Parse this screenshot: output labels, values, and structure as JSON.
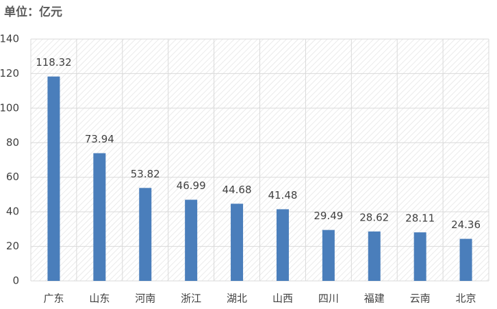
{
  "chart_data": {
    "type": "bar",
    "title": "单位：亿元",
    "categories": [
      "广东",
      "山东",
      "河南",
      "浙江",
      "湖北",
      "山西",
      "四川",
      "福建",
      "云南",
      "北京"
    ],
    "values": [
      118.32,
      73.94,
      53.82,
      46.99,
      44.68,
      41.48,
      29.49,
      28.62,
      28.11,
      24.36
    ],
    "color": "#4a7ebb",
    "ylim": [
      0,
      140
    ],
    "yticks": [
      0,
      20,
      40,
      60,
      80,
      100,
      120,
      140
    ],
    "grid": true
  }
}
